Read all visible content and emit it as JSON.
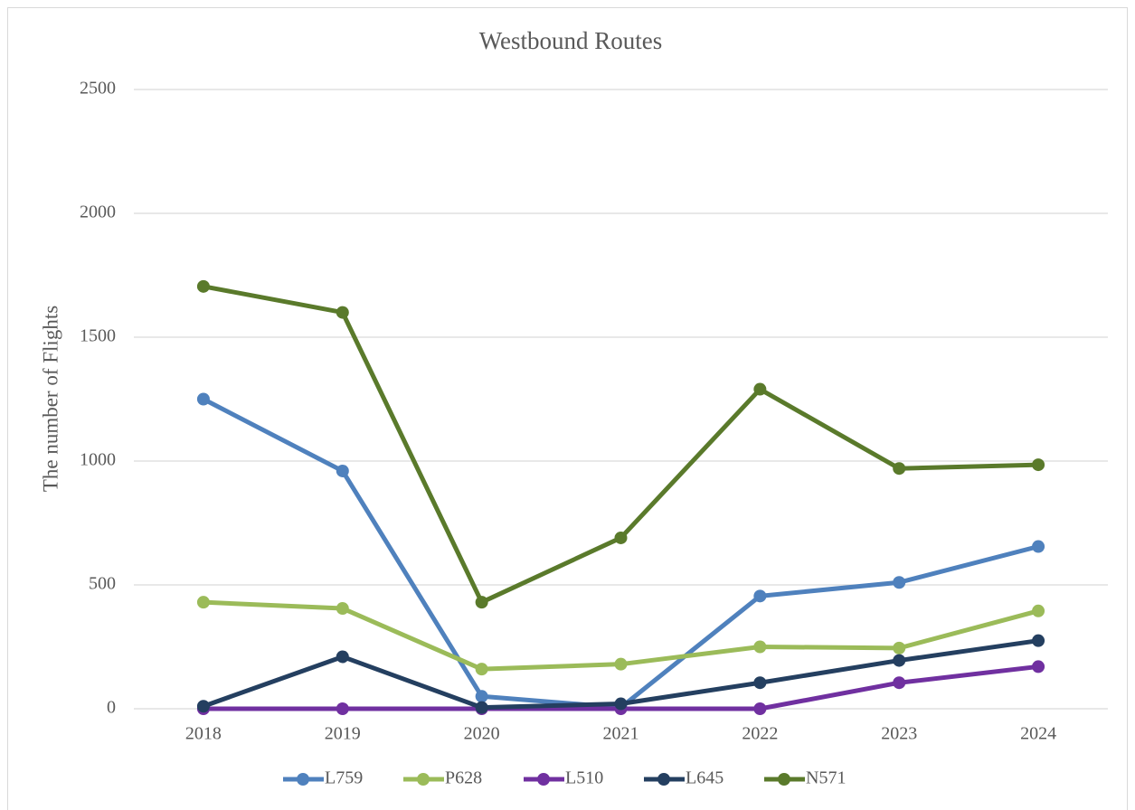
{
  "chart_data": {
    "type": "line",
    "title": "Westbound Routes",
    "y_label": "The number of Flights",
    "categories": [
      "2018",
      "2019",
      "2020",
      "2021",
      "2022",
      "2023",
      "2024"
    ],
    "series": [
      {
        "name": "L759",
        "color": "#4f81bd",
        "values": [
          1250,
          960,
          50,
          5,
          455,
          510,
          655
        ]
      },
      {
        "name": "P628",
        "color": "#9bbb59",
        "values": [
          430,
          405,
          160,
          180,
          250,
          245,
          395
        ]
      },
      {
        "name": "L510",
        "color": "#7030a0",
        "values": [
          0,
          0,
          0,
          0,
          0,
          105,
          170
        ]
      },
      {
        "name": "L645",
        "color": "#243f60",
        "values": [
          10,
          210,
          5,
          20,
          105,
          195,
          275
        ]
      },
      {
        "name": "N571",
        "color": "#5a7a2b",
        "values": [
          1705,
          1600,
          430,
          690,
          1290,
          970,
          985
        ]
      }
    ],
    "ylim": [
      0,
      2500
    ],
    "yticks": [
      0,
      500,
      1000,
      1500,
      2000,
      2500
    ],
    "grid": true,
    "legend": "bottom"
  }
}
